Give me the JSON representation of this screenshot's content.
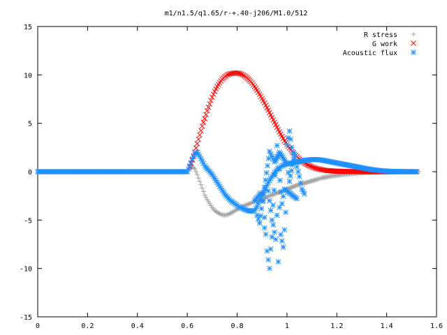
{
  "chart_data": {
    "type": "scatter",
    "title": "m1/n1.5/q1.65/r-+.40-j206/M1.0/512",
    "xlabel": "",
    "ylabel": "",
    "xlim": [
      0,
      1.6
    ],
    "ylim": [
      -15,
      15
    ],
    "xticks": [
      "0",
      "0.2",
      "0.4",
      "0.6",
      "0.8",
      "1",
      "1.2",
      "1.4",
      "1.6"
    ],
    "yticks": [
      "15",
      "10",
      "5",
      "0",
      "-5",
      "-10",
      "-15"
    ],
    "legend_position": "top-right",
    "grid": false,
    "series": [
      {
        "name": "R stress",
        "marker": "plus",
        "color": "#a0a0a0",
        "x": [
          0.0,
          0.1,
          0.2,
          0.3,
          0.4,
          0.5,
          0.6,
          0.61,
          0.62,
          0.63,
          0.64,
          0.65,
          0.66,
          0.67,
          0.68,
          0.69,
          0.7,
          0.71,
          0.72,
          0.73,
          0.74,
          0.75,
          0.76,
          0.77,
          0.78,
          0.79,
          0.8,
          0.81,
          0.82,
          0.83,
          0.84,
          0.85,
          0.86,
          0.87,
          0.88,
          0.89,
          0.9,
          0.92,
          0.94,
          0.96,
          0.98,
          1.0,
          1.02,
          1.04,
          1.06,
          1.08,
          1.1,
          1.12,
          1.14,
          1.16,
          1.18,
          1.2,
          1.22,
          1.24,
          1.26,
          1.28,
          1.3,
          1.32,
          1.34,
          1.36,
          1.38,
          1.4,
          1.42,
          1.44,
          1.46,
          1.48,
          1.5,
          1.52,
          1.53
        ],
        "y": [
          0,
          0,
          0,
          0,
          0,
          0,
          0,
          0.3,
          0.5,
          0.3,
          -0.3,
          -1.0,
          -1.7,
          -2.4,
          -2.9,
          -3.3,
          -3.7,
          -4.0,
          -4.2,
          -4.35,
          -4.45,
          -4.5,
          -4.45,
          -4.35,
          -4.2,
          -4.05,
          -3.9,
          -3.75,
          -3.6,
          -3.5,
          -3.4,
          -3.3,
          -3.2,
          -3.1,
          -3.0,
          -2.9,
          -2.8,
          -2.6,
          -2.4,
          -2.2,
          -2.0,
          -1.8,
          -1.6,
          -1.4,
          -1.25,
          -1.1,
          -0.95,
          -0.8,
          -0.65,
          -0.55,
          -0.45,
          -0.38,
          -0.3,
          -0.25,
          -0.2,
          -0.15,
          -0.12,
          -0.1,
          -0.08,
          -0.06,
          -0.04,
          -0.03,
          -0.02,
          -0.01,
          -0.01,
          0,
          0,
          0,
          0
        ]
      },
      {
        "name": "G work",
        "marker": "cross",
        "color": "#ff0000",
        "x": [
          0.61,
          0.62,
          0.63,
          0.64,
          0.65,
          0.66,
          0.67,
          0.68,
          0.69,
          0.7,
          0.71,
          0.72,
          0.73,
          0.74,
          0.75,
          0.76,
          0.77,
          0.78,
          0.79,
          0.8,
          0.81,
          0.82,
          0.83,
          0.84,
          0.85,
          0.86,
          0.87,
          0.88,
          0.89,
          0.9,
          0.91,
          0.92,
          0.93,
          0.94,
          0.95,
          0.96,
          0.97,
          0.98,
          0.99,
          1.0,
          1.01,
          1.02,
          1.03,
          1.04,
          1.05,
          1.06,
          1.07,
          1.08,
          1.09,
          1.1,
          1.11,
          1.12,
          1.13,
          1.14,
          1.15,
          1.16,
          1.18,
          1.2,
          1.22,
          1.24,
          1.26,
          1.28,
          1.3,
          1.32,
          1.34,
          1.36,
          1.38,
          1.4,
          1.42,
          1.44,
          1.46,
          1.48,
          1.5,
          1.52
        ],
        "y": [
          0.5,
          1.2,
          2.0,
          2.9,
          3.8,
          4.7,
          5.5,
          6.3,
          7.0,
          7.7,
          8.3,
          8.8,
          9.2,
          9.55,
          9.8,
          10.0,
          10.1,
          10.15,
          10.2,
          10.2,
          10.15,
          10.05,
          9.9,
          9.7,
          9.45,
          9.15,
          8.8,
          8.4,
          8.0,
          7.55,
          7.1,
          6.6,
          6.1,
          5.6,
          5.1,
          4.6,
          4.1,
          3.65,
          3.2,
          2.8,
          2.45,
          2.1,
          1.8,
          1.55,
          1.3,
          1.1,
          0.9,
          0.75,
          0.62,
          0.5,
          0.4,
          0.32,
          0.25,
          0.2,
          0.16,
          0.12,
          0.08,
          0.05,
          0.03,
          0.02,
          0.01,
          0,
          0,
          0,
          0,
          0,
          0,
          0,
          0,
          0,
          0,
          0,
          0,
          0
        ]
      },
      {
        "name": "Acoustic flux",
        "marker": "star",
        "color": "#1e90ff",
        "x": [
          0.0,
          0.05,
          0.1,
          0.15,
          0.2,
          0.25,
          0.3,
          0.35,
          0.4,
          0.45,
          0.5,
          0.55,
          0.6,
          0.61,
          0.62,
          0.63,
          0.64,
          0.65,
          0.66,
          0.67,
          0.68,
          0.69,
          0.7,
          0.71,
          0.72,
          0.73,
          0.74,
          0.75,
          0.76,
          0.77,
          0.78,
          0.79,
          0.8,
          0.81,
          0.82,
          0.83,
          0.84,
          0.85,
          0.86,
          0.87,
          0.88,
          0.89,
          0.9,
          0.91,
          0.92,
          0.93,
          0.94,
          0.95,
          0.96,
          0.97,
          0.98,
          0.99,
          1.0,
          1.01,
          1.02,
          1.03,
          1.04,
          1.05,
          1.06,
          1.07,
          1.08,
          1.1,
          1.12,
          1.14,
          1.16,
          1.18,
          1.2,
          1.22,
          1.24,
          1.26,
          1.28,
          1.3,
          1.32,
          1.34,
          1.36,
          1.38,
          1.4,
          1.42,
          1.44,
          1.46,
          1.48,
          1.5,
          1.52,
          0.905,
          0.92,
          0.93,
          0.935,
          0.945,
          0.955,
          0.96,
          0.965,
          0.97,
          0.975,
          0.985,
          0.995,
          1.0,
          1.01,
          1.02,
          1.03,
          1.04,
          1.05,
          1.06,
          1.07,
          0.88,
          0.89,
          0.93,
          0.95,
          0.97,
          1.0,
          1.01,
          1.03,
          0.925,
          0.94,
          0.96,
          0.98,
          0.99,
          1.04,
          0.91,
          0.87,
          0.895
        ],
        "y": [
          0,
          0,
          0,
          0,
          0,
          0,
          0,
          0,
          0,
          0,
          0,
          0,
          0,
          0.6,
          1.3,
          1.8,
          2.0,
          1.6,
          1.1,
          0.6,
          0.3,
          0,
          -0.3,
          -0.7,
          -1.1,
          -1.5,
          -1.9,
          -2.3,
          -2.6,
          -2.9,
          -3.1,
          -3.3,
          -3.5,
          -3.65,
          -3.8,
          -3.9,
          -4.0,
          -4.05,
          -4.1,
          -4.0,
          -3.6,
          -3.0,
          -2.4,
          -1.9,
          -1.4,
          -0.9,
          -0.5,
          -0.1,
          0.2,
          0.4,
          0.6,
          0.7,
          0.8,
          0.85,
          0.9,
          0.95,
          1.0,
          1.05,
          1.1,
          1.15,
          1.2,
          1.25,
          1.25,
          1.2,
          1.1,
          1.0,
          0.9,
          0.8,
          0.7,
          0.6,
          0.5,
          0.4,
          0.3,
          0.22,
          0.15,
          0.1,
          0.06,
          0.03,
          0.02,
          0.01,
          0,
          0,
          0,
          -3.0,
          -8.2,
          -10.0,
          -8.0,
          -5.5,
          -7.0,
          -4.5,
          -9.3,
          -3.7,
          -6.5,
          -7.8,
          -4.2,
          2.8,
          4.2,
          2.5,
          1.5,
          0.5,
          -0.5,
          -1.8,
          -2.3,
          -4.5,
          -5.3,
          2.1,
          1.0,
          2.0,
          0.8,
          -1.0,
          1.8,
          -2.0,
          -5.0,
          2.7,
          -3.3,
          -1.8,
          -2.8,
          -5.8,
          -3.0,
          -2.2
        ],
        "labels": []
      }
    ]
  }
}
